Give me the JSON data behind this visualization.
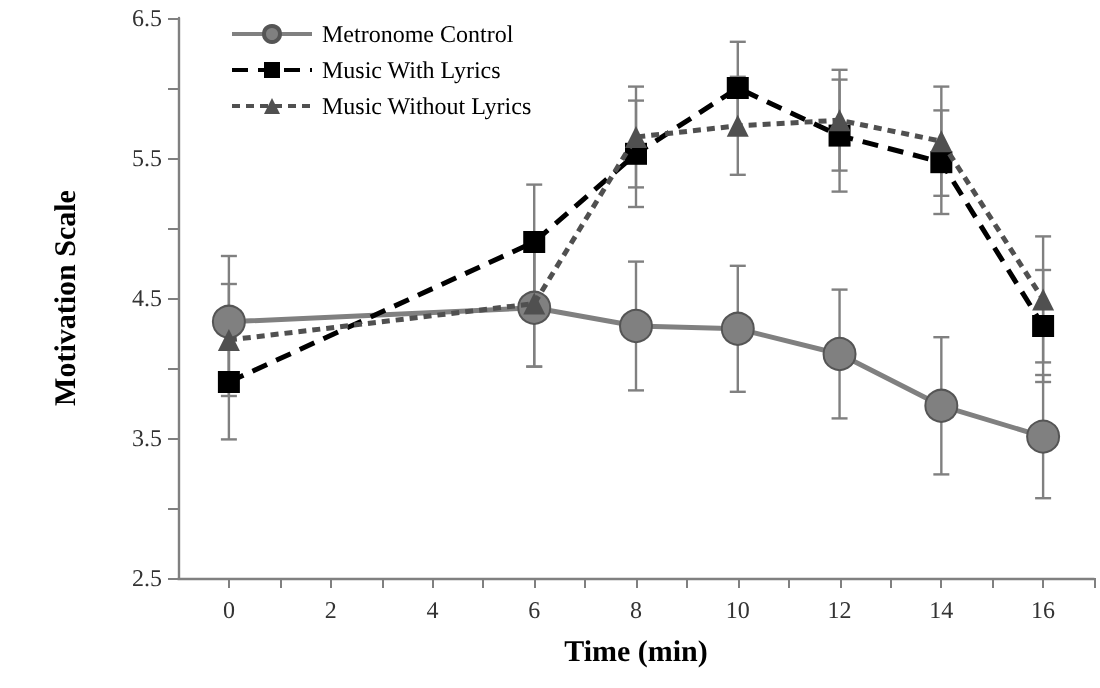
{
  "chart_data": {
    "type": "line",
    "xlabel": "Time (min)",
    "ylabel": "Motivation Scale",
    "x": [
      0,
      6,
      8,
      10,
      12,
      14,
      16
    ],
    "series": [
      {
        "name": "Metronome Control",
        "color": "#808080",
        "marker": "circle",
        "line_style": "solid",
        "values": [
          4.33,
          4.43,
          4.3,
          4.28,
          4.1,
          3.73,
          3.51
        ],
        "errors": [
          0.47,
          0.42,
          0.46,
          0.45,
          0.46,
          0.49,
          0.44
        ]
      },
      {
        "name": "Music With Lyrics",
        "color": "#000000",
        "marker": "square",
        "line_style": "dashed",
        "values": [
          3.9,
          4.9,
          5.53,
          6.0,
          5.66,
          5.47,
          4.3
        ],
        "errors": [
          0.41,
          0.41,
          0.38,
          0.33,
          0.4,
          0.37,
          0.4
        ]
      },
      {
        "name": "Music Without Lyrics",
        "color": "#505050",
        "marker": "triangle",
        "line_style": "dotted",
        "values": [
          4.2,
          4.46,
          5.65,
          5.73,
          5.77,
          5.62,
          4.49
        ],
        "errors": [
          0.4,
          0.45,
          0.36,
          0.35,
          0.36,
          0.39,
          0.45
        ]
      }
    ],
    "xlim": [
      -1,
      17
    ],
    "xticks": [
      0,
      {
        "value": 1,
        "label": null
      },
      2,
      {
        "value": 3,
        "label": null
      },
      4,
      {
        "value": 5,
        "label": null
      },
      6,
      {
        "value": 7,
        "label": null
      },
      8,
      {
        "value": 9,
        "label": null
      },
      10,
      {
        "value": 11,
        "label": null
      },
      12,
      {
        "value": 13,
        "label": null
      },
      14,
      {
        "value": 15,
        "label": null
      },
      16,
      {
        "value": 17,
        "label": null
      }
    ],
    "ylim": [
      2.5,
      6.5
    ],
    "yticks": [
      2.5,
      {
        "value": 3,
        "label": null
      },
      3.5,
      {
        "value": 4,
        "label": null
      },
      4.5,
      {
        "value": 5,
        "label": null
      },
      5.5,
      {
        "value": 6,
        "label": null
      },
      6.5
    ],
    "grid": false,
    "legend": "top left"
  }
}
